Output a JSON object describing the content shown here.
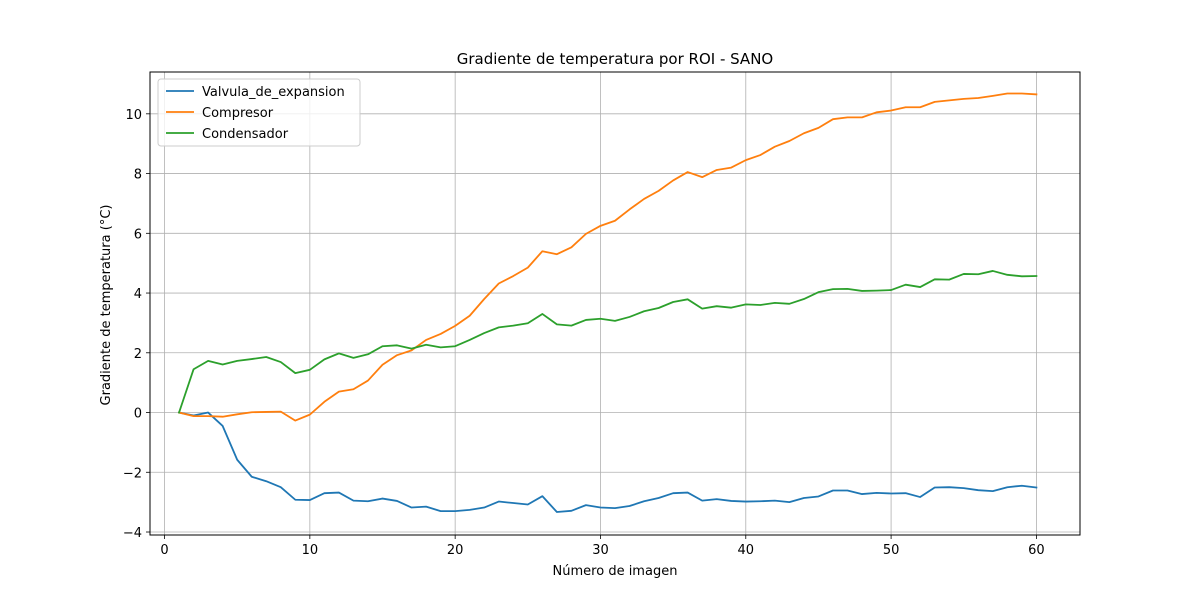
{
  "chart_data": {
    "type": "line",
    "title": "Gradiente de temperatura por ROI - SANO",
    "xlabel": "Número de imagen",
    "ylabel": "Gradiente de temperatura (°C)",
    "xlim": [
      -1,
      63
    ],
    "ylim": [
      -4.1,
      11.4
    ],
    "xticks": [
      0,
      10,
      20,
      30,
      40,
      50,
      60
    ],
    "yticks": [
      -4,
      -2,
      0,
      2,
      4,
      6,
      8,
      10
    ],
    "grid": true,
    "legend_position": "top-left",
    "x": [
      1,
      2,
      3,
      4,
      5,
      6,
      7,
      8,
      9,
      10,
      11,
      12,
      13,
      14,
      15,
      16,
      17,
      18,
      19,
      20,
      21,
      22,
      23,
      24,
      25,
      26,
      27,
      28,
      29,
      30,
      31,
      32,
      33,
      34,
      35,
      36,
      37,
      38,
      39,
      40,
      41,
      42,
      43,
      44,
      45,
      46,
      47,
      48,
      49,
      50,
      51,
      52,
      53,
      54,
      55,
      56,
      57,
      58,
      59,
      60
    ],
    "series": [
      {
        "name": "Valvula_de_expansion",
        "color": "#1f77b4",
        "values": [
          0.0,
          -0.1,
          0.0,
          -0.45,
          -1.58,
          -2.15,
          -2.3,
          -2.5,
          -2.92,
          -2.93,
          -2.7,
          -2.68,
          -2.95,
          -2.97,
          -2.88,
          -2.96,
          -3.18,
          -3.15,
          -3.3,
          -3.3,
          -3.26,
          -3.18,
          -2.98,
          -3.03,
          -3.08,
          -2.8,
          -3.33,
          -3.29,
          -3.1,
          -3.18,
          -3.2,
          -3.13,
          -2.97,
          -2.86,
          -2.7,
          -2.68,
          -2.95,
          -2.9,
          -2.96,
          -2.98,
          -2.97,
          -2.95,
          -3.0,
          -2.86,
          -2.81,
          -2.61,
          -2.61,
          -2.73,
          -2.69,
          -2.71,
          -2.7,
          -2.83,
          -2.51,
          -2.5,
          -2.53,
          -2.6,
          -2.63,
          -2.5,
          -2.45,
          -2.51
        ]
      },
      {
        "name": "Compresor",
        "color": "#ff7f0e",
        "values": [
          0.0,
          -0.12,
          -0.12,
          -0.14,
          -0.06,
          0.01,
          0.02,
          0.03,
          -0.27,
          -0.07,
          0.36,
          0.7,
          0.78,
          1.07,
          1.6,
          1.92,
          2.08,
          2.43,
          2.63,
          2.9,
          3.24,
          3.8,
          4.32,
          4.57,
          4.85,
          5.4,
          5.3,
          5.53,
          5.98,
          6.25,
          6.42,
          6.8,
          7.15,
          7.42,
          7.77,
          8.05,
          7.88,
          8.12,
          8.2,
          8.45,
          8.62,
          8.9,
          9.09,
          9.35,
          9.53,
          9.82,
          9.88,
          9.88,
          10.05,
          10.11,
          10.22,
          10.22,
          10.4,
          10.45,
          10.5,
          10.53,
          10.6,
          10.68,
          10.68,
          10.65
        ]
      },
      {
        "name": "Condensador",
        "color": "#2ca02c",
        "values": [
          0.0,
          1.45,
          1.73,
          1.61,
          1.73,
          1.79,
          1.86,
          1.69,
          1.32,
          1.43,
          1.78,
          1.98,
          1.83,
          1.95,
          2.22,
          2.25,
          2.14,
          2.27,
          2.18,
          2.22,
          2.43,
          2.66,
          2.85,
          2.91,
          2.99,
          3.3,
          2.95,
          2.91,
          3.1,
          3.14,
          3.07,
          3.2,
          3.39,
          3.5,
          3.7,
          3.79,
          3.48,
          3.56,
          3.51,
          3.62,
          3.6,
          3.67,
          3.64,
          3.8,
          4.03,
          4.13,
          4.14,
          4.07,
          4.08,
          4.1,
          4.28,
          4.2,
          4.46,
          4.45,
          4.64,
          4.63,
          4.74,
          4.61,
          4.56,
          4.57
        ]
      }
    ]
  }
}
